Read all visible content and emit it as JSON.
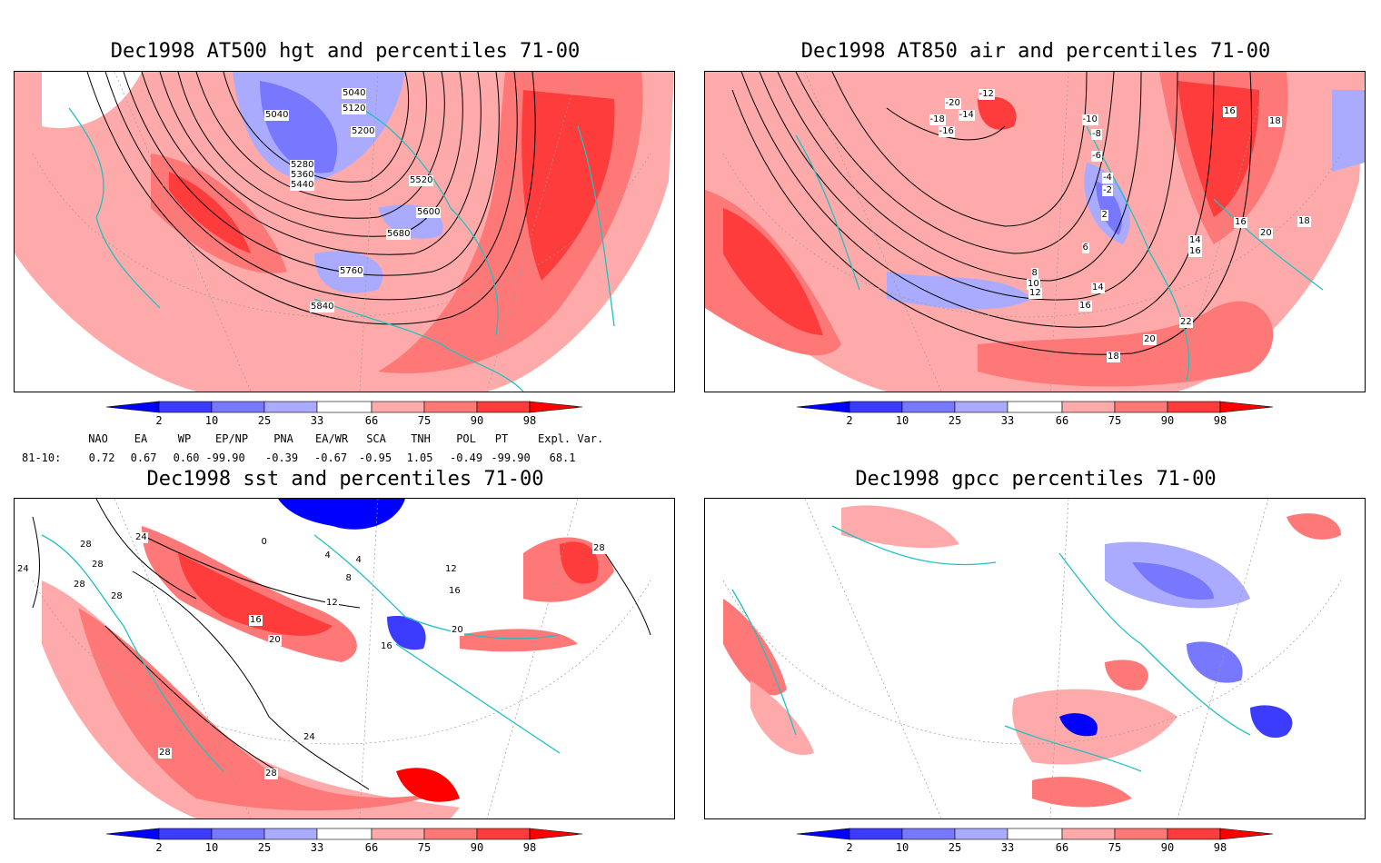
{
  "panels": [
    {
      "title": "Dec1998 AT500 hgt and percentiles 71-00",
      "labels": [
        "5040",
        "5040",
        "5120",
        "5200",
        "5280",
        "5360",
        "5440",
        "5520",
        "5600",
        "5680",
        "5760",
        "5840"
      ]
    },
    {
      "title": "Dec1998 AT850 air and percentiles 71-00",
      "labels": [
        "-20",
        "-18",
        "-16",
        "-14",
        "-12",
        "-10",
        "-8",
        "-6",
        "-4",
        "-2",
        "2",
        "4",
        "6",
        "8",
        "10",
        "12",
        "14",
        "16",
        "18",
        "20",
        "22",
        "14",
        "16",
        "16",
        "18",
        "20",
        "18",
        "16"
      ]
    },
    {
      "title": "Dec1998 sst and percentiles 71-00",
      "labels": [
        "28",
        "24",
        "28",
        "24",
        "28",
        "28",
        "0",
        "4",
        "4",
        "8",
        "12",
        "16",
        "20",
        "24",
        "28",
        "28",
        "16",
        "20",
        "16",
        "12",
        "28"
      ]
    },
    {
      "title": "Dec1998 gpcc percentiles 71-00",
      "labels": []
    }
  ],
  "colorbar": {
    "ticks": [
      "2",
      "10",
      "25",
      "33",
      "66",
      "75",
      "90",
      "98"
    ],
    "colors": {
      "dark_blue": "#0000ff",
      "blue": "#3c3cff",
      "mid_blue": "#7878ff",
      "light_blue": "#aaaaff",
      "light_red": "#ffaaaa",
      "mid_red": "#ff7878",
      "red": "#ff3c3c",
      "dark_red": "#ff0000"
    }
  },
  "indices": {
    "header": [
      "NAO",
      "EA",
      "WP",
      "EP/NP",
      "PNA",
      "EA/WR",
      "SCA",
      "TNH",
      "POL",
      "PT",
      "Expl. Var."
    ],
    "row_label": "81-10:",
    "values": [
      "0.72",
      "0.67",
      "0.60",
      "-99.90",
      "-0.39",
      "-0.67",
      "-0.95",
      "1.05",
      "-0.49",
      "-99.90",
      "68.1"
    ]
  },
  "colors": {
    "coast": "#20c0c0",
    "contour": "#000000",
    "grid": "#999999"
  }
}
